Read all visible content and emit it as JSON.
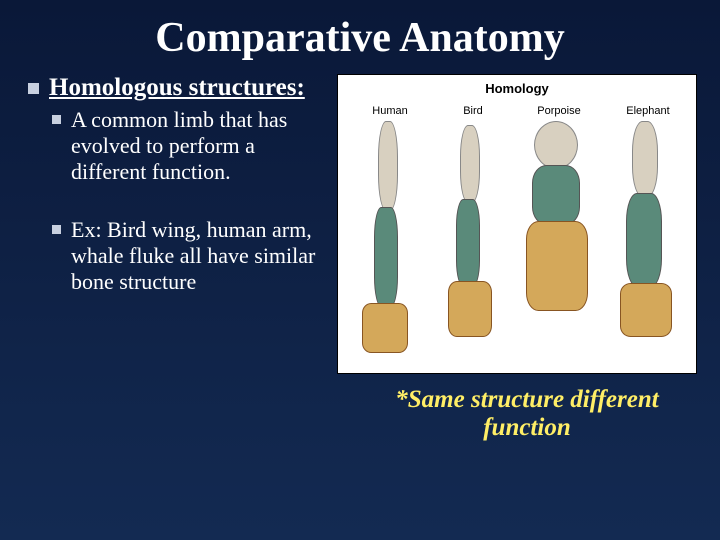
{
  "title": "Comparative Anatomy",
  "bullet1": {
    "heading": "Homologous structures:",
    "sub": "A common limb that has evolved to perform a different function."
  },
  "bullet2": {
    "text": "Ex: Bird wing, human arm, whale fluke  all have similar bone structure"
  },
  "diagram": {
    "title": "Homology",
    "labels": [
      "Human",
      "Bird",
      "Porpoise",
      "Elephant"
    ],
    "colors": {
      "humerus": "#d8d0c0",
      "radius_ulna": "#5a8a7a",
      "carpals": "#d4a85a",
      "background": "#ffffff"
    }
  },
  "caption": "*Same structure different function",
  "style": {
    "bg_gradient_top": "#0a1838",
    "bg_gradient_bottom": "#132a52",
    "title_fontsize": 42,
    "heading_fontsize": 25,
    "body_fontsize": 22,
    "caption_color": "#ffee66",
    "bullet_color": "#c8d0e0",
    "text_color": "#ffffff",
    "font_family": "Georgia, Times New Roman, serif"
  }
}
